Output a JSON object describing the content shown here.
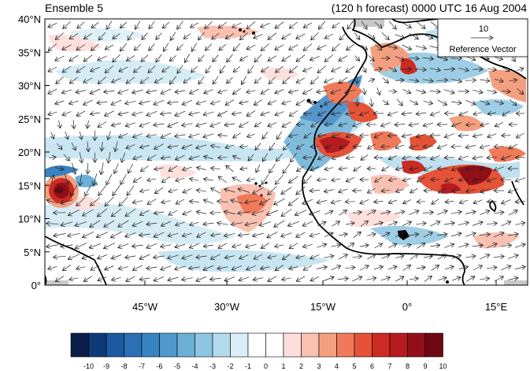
{
  "title_left": "Ensemble 5",
  "title_right": "(120 h forecast) 0000 UTC 16 Aug 2004",
  "lat_ticks": [
    "0°",
    "5°N",
    "10°N",
    "15°N",
    "20°N",
    "25°N",
    "30°N",
    "35°N",
    "40°N"
  ],
  "lon_ticks": [
    "45°W",
    "30°W",
    "15°W",
    "0°",
    "15°E"
  ],
  "reference_vector": {
    "value": "10",
    "label": "Reference Vector"
  },
  "colorbar": {
    "labels": [
      "-10",
      "-9",
      "-8",
      "-7",
      "-6",
      "-5",
      "-4",
      "-3",
      "-2",
      "-1",
      "0",
      "1",
      "2",
      "3",
      "4",
      "5",
      "6",
      "7",
      "8",
      "9",
      "10"
    ],
    "colors": [
      "#0a1e4a",
      "#0f3a78",
      "#1b5aa0",
      "#2b6fb5",
      "#3783c2",
      "#5199cc",
      "#6bb0d6",
      "#8ec6e1",
      "#b4dbec",
      "#d9eef7",
      "#ffffff",
      "#ffffff",
      "#fde0dd",
      "#f9c1b1",
      "#f4a080",
      "#ef7a5a",
      "#e45238",
      "#cc2a22",
      "#b51b1f",
      "#930f18",
      "#6e0810"
    ]
  },
  "anomaly_features": [
    {
      "name": "strong positive anomaly near 15N 57W",
      "color": "#7a0a0a"
    },
    {
      "name": "positive anomalies over West Africa",
      "color": "#c8221c"
    },
    {
      "name": "negative anomaly belt near 20N",
      "color": "#3a85c4"
    }
  ]
}
